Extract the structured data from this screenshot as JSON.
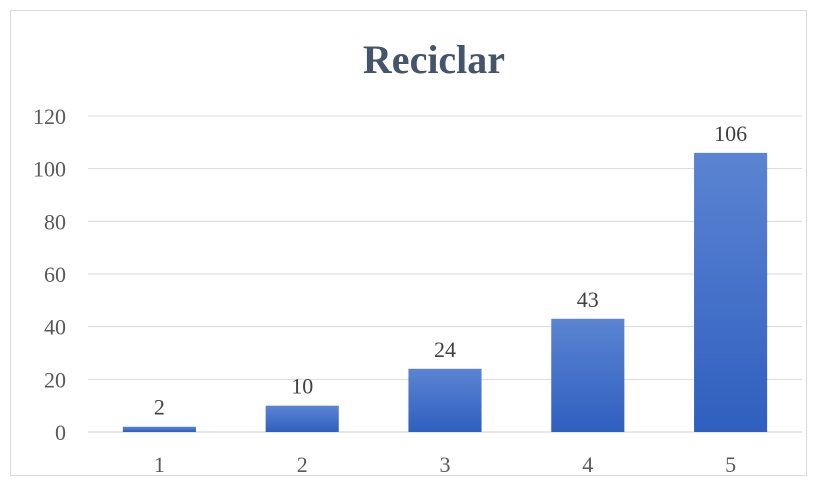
{
  "chart_data": {
    "type": "bar",
    "title": "Reciclar",
    "categories": [
      "1",
      "2",
      "3",
      "4",
      "5"
    ],
    "values": [
      2,
      10,
      24,
      43,
      106
    ],
    "data_labels": [
      "2",
      "10",
      "24",
      "43",
      "106"
    ],
    "y_ticks": [
      "0",
      "20",
      "40",
      "60",
      "80",
      "100",
      "120"
    ],
    "ylim": [
      0,
      120
    ],
    "xlabel": "",
    "ylabel": "",
    "grid": true,
    "legend": "none",
    "colors": {
      "bar_top": "#5b84d2",
      "bar_bottom": "#2f5fbf",
      "title": "#44546a",
      "grid": "#d9d9d9"
    }
  }
}
